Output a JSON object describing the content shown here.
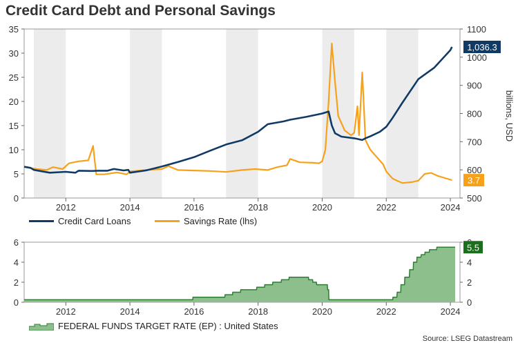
{
  "title": "Credit Card Debt and Personal Savings",
  "source": "Source: LSEG Datastream",
  "colors": {
    "loans": "#0f3a66",
    "savings": "#f7a11a",
    "fed": "#8dbf8d",
    "fed_line": "#2e7d32",
    "shade": "#ececec"
  },
  "chart_data": [
    {
      "type": "line",
      "title": "Credit Card Debt and Personal Savings",
      "grid": false,
      "shaded_years": [
        2011,
        2014,
        2017,
        2020,
        2022
      ],
      "x_ticks": [
        "2012",
        "2014",
        "2016",
        "2018",
        "2020",
        "2022",
        "2024"
      ],
      "xlim": [
        2010.7,
        2024.3
      ],
      "y_left": {
        "label": "",
        "lim": [
          0,
          35
        ],
        "ticks": [
          "0",
          "5",
          "10",
          "15",
          "20",
          "25",
          "30",
          "35"
        ]
      },
      "y_right": {
        "label": "billions, USD",
        "lim": [
          500,
          1100
        ],
        "ticks": [
          "500",
          "600",
          "700",
          "800",
          "900",
          "1000",
          "1100"
        ]
      },
      "legend": {
        "position": "bottom",
        "entries": [
          "Credit Card Loans",
          "Savings Rate (lhs)"
        ]
      },
      "series": [
        {
          "name": "Credit Card Loans",
          "axis": "right",
          "last_label": "1,036.3",
          "points": [
            [
              2010.7,
              611
            ],
            [
              2010.9,
              607
            ],
            [
              2011.0,
              600
            ],
            [
              2011.5,
              590
            ],
            [
              2012.0,
              593
            ],
            [
              2012.3,
              590
            ],
            [
              2012.4,
              597
            ],
            [
              2012.8,
              596
            ],
            [
              2013.0,
              597
            ],
            [
              2013.3,
              597
            ],
            [
              2013.5,
              603
            ],
            [
              2013.8,
              598
            ],
            [
              2013.95,
              600
            ],
            [
              2014.0,
              590
            ],
            [
              2014.5,
              598
            ],
            [
              2015.0,
              612
            ],
            [
              2015.5,
              628
            ],
            [
              2016.0,
              645
            ],
            [
              2016.5,
              668
            ],
            [
              2017.0,
              690
            ],
            [
              2017.5,
              705
            ],
            [
              2018.0,
              735
            ],
            [
              2018.3,
              762
            ],
            [
              2018.8,
              772
            ],
            [
              2019.0,
              778
            ],
            [
              2019.5,
              788
            ],
            [
              2020.0,
              800
            ],
            [
              2020.2,
              807
            ],
            [
              2020.3,
              758
            ],
            [
              2020.4,
              730
            ],
            [
              2020.6,
              718
            ],
            [
              2021.0,
              712
            ],
            [
              2021.25,
              706
            ],
            [
              2021.35,
              712
            ],
            [
              2021.5,
              719
            ],
            [
              2021.8,
              735
            ],
            [
              2022.0,
              753
            ],
            [
              2022.2,
              785
            ],
            [
              2022.5,
              838
            ],
            [
              2023.0,
              922
            ],
            [
              2023.5,
              963
            ],
            [
              2024.0,
              1025
            ],
            [
              2024.05,
              1036.3
            ]
          ]
        },
        {
          "name": "Savings Rate (lhs)",
          "axis": "left",
          "last_label": "3.7",
          "points": [
            [
              2010.7,
              6.5
            ],
            [
              2010.9,
              6.2
            ],
            [
              2011.1,
              6.0
            ],
            [
              2011.4,
              5.8
            ],
            [
              2011.6,
              6.4
            ],
            [
              2011.9,
              6.0
            ],
            [
              2012.1,
              7.2
            ],
            [
              2012.4,
              7.6
            ],
            [
              2012.7,
              7.8
            ],
            [
              2012.85,
              10.8
            ],
            [
              2012.95,
              4.9
            ],
            [
              2013.2,
              4.9
            ],
            [
              2013.6,
              5.3
            ],
            [
              2013.9,
              4.9
            ],
            [
              2014.0,
              5.5
            ],
            [
              2014.5,
              5.8
            ],
            [
              2015.0,
              6.0
            ],
            [
              2015.2,
              6.6
            ],
            [
              2015.5,
              5.8
            ],
            [
              2016.0,
              5.7
            ],
            [
              2016.5,
              5.6
            ],
            [
              2017.0,
              5.4
            ],
            [
              2017.5,
              5.8
            ],
            [
              2017.9,
              6.0
            ],
            [
              2018.3,
              5.8
            ],
            [
              2018.6,
              6.4
            ],
            [
              2018.9,
              6.8
            ],
            [
              2019.0,
              8.1
            ],
            [
              2019.3,
              7.4
            ],
            [
              2019.7,
              7.3
            ],
            [
              2019.9,
              7.2
            ],
            [
              2020.0,
              7.6
            ],
            [
              2020.1,
              10.0
            ],
            [
              2020.2,
              20.0
            ],
            [
              2020.3,
              32.0
            ],
            [
              2020.4,
              24.0
            ],
            [
              2020.5,
              17.0
            ],
            [
              2020.7,
              14.0
            ],
            [
              2020.9,
              13.0
            ],
            [
              2021.0,
              13.5
            ],
            [
              2021.1,
              19.0
            ],
            [
              2021.15,
              13.0
            ],
            [
              2021.25,
              26.0
            ],
            [
              2021.35,
              12.0
            ],
            [
              2021.5,
              10.0
            ],
            [
              2021.7,
              8.5
            ],
            [
              2021.9,
              7.0
            ],
            [
              2022.0,
              5.5
            ],
            [
              2022.2,
              4.0
            ],
            [
              2022.5,
              3.1
            ],
            [
              2022.8,
              3.3
            ],
            [
              2023.0,
              3.6
            ],
            [
              2023.2,
              5.0
            ],
            [
              2023.4,
              5.2
            ],
            [
              2023.6,
              4.6
            ],
            [
              2023.9,
              4.0
            ],
            [
              2024.05,
              3.7
            ]
          ]
        }
      ]
    },
    {
      "type": "area",
      "title": "",
      "grid": false,
      "shaded_years": [],
      "x_ticks": [
        "2012",
        "2014",
        "2016",
        "2018",
        "2020",
        "2022",
        "2024"
      ],
      "xlim": [
        2010.7,
        2024.3
      ],
      "y_left": {
        "label": "",
        "lim": [
          0,
          6
        ],
        "ticks": [
          "0",
          "2",
          "4",
          "6"
        ]
      },
      "y_right": {
        "label": "",
        "lim": [
          0,
          6
        ],
        "ticks": [
          "0",
          "2",
          "4",
          "6"
        ]
      },
      "legend": {
        "position": "bottom",
        "entries": [
          "FEDERAL FUNDS TARGET RATE (EP) : United States"
        ]
      },
      "series": [
        {
          "name": "FEDERAL FUNDS TARGET RATE (EP) : United States",
          "axis": "left",
          "last_label": "5.5",
          "points": [
            [
              2010.7,
              0.25
            ],
            [
              2015.96,
              0.25
            ],
            [
              2015.97,
              0.5
            ],
            [
              2016.96,
              0.5
            ],
            [
              2016.97,
              0.75
            ],
            [
              2017.2,
              0.75
            ],
            [
              2017.21,
              1.0
            ],
            [
              2017.45,
              1.0
            ],
            [
              2017.46,
              1.25
            ],
            [
              2017.95,
              1.25
            ],
            [
              2017.96,
              1.5
            ],
            [
              2018.2,
              1.5
            ],
            [
              2018.21,
              1.75
            ],
            [
              2018.45,
              1.75
            ],
            [
              2018.46,
              2.0
            ],
            [
              2018.72,
              2.0
            ],
            [
              2018.73,
              2.25
            ],
            [
              2018.96,
              2.25
            ],
            [
              2018.97,
              2.5
            ],
            [
              2019.57,
              2.5
            ],
            [
              2019.58,
              2.25
            ],
            [
              2019.7,
              2.25
            ],
            [
              2019.71,
              2.0
            ],
            [
              2019.82,
              2.0
            ],
            [
              2019.83,
              1.75
            ],
            [
              2020.16,
              1.75
            ],
            [
              2020.17,
              1.25
            ],
            [
              2020.2,
              1.25
            ],
            [
              2020.21,
              0.25
            ],
            [
              2022.2,
              0.25
            ],
            [
              2022.21,
              0.5
            ],
            [
              2022.33,
              0.5
            ],
            [
              2022.34,
              1.0
            ],
            [
              2022.45,
              1.0
            ],
            [
              2022.46,
              1.75
            ],
            [
              2022.57,
              1.75
            ],
            [
              2022.58,
              2.5
            ],
            [
              2022.72,
              2.5
            ],
            [
              2022.73,
              3.25
            ],
            [
              2022.84,
              3.25
            ],
            [
              2022.85,
              4.0
            ],
            [
              2022.95,
              4.0
            ],
            [
              2022.96,
              4.5
            ],
            [
              2023.08,
              4.5
            ],
            [
              2023.09,
              4.75
            ],
            [
              2023.2,
              4.75
            ],
            [
              2023.21,
              5.0
            ],
            [
              2023.34,
              5.0
            ],
            [
              2023.35,
              5.25
            ],
            [
              2023.57,
              5.25
            ],
            [
              2023.58,
              5.5
            ],
            [
              2024.15,
              5.5
            ]
          ]
        }
      ]
    }
  ]
}
